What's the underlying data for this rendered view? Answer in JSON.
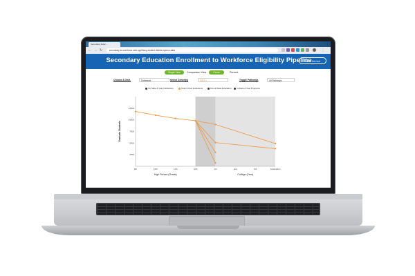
{
  "browser": {
    "tab_title": "Secondary Educ...",
    "url": "secondary-to-workforce.web.app/Navy-student-district-epeeco-data",
    "nav_icons": [
      "back-arrow",
      "forward-arrow",
      "reload"
    ]
  },
  "header": {
    "title": "Secondary Education Enrollment to Workforce Eligibility Pipeline",
    "about_label": "About this tool"
  },
  "view_toggle": {
    "single_label": "Single View",
    "comparison_label": "Comparison View",
    "count_label": "Count",
    "percent_label": "Percent"
  },
  "filters": {
    "district_label": "Choose A Distr.",
    "district_value": "Dolbeanie",
    "cohort_label": "Select Cohort(s)",
    "cohort_value": "2023 ×",
    "pathway_label": "Toggle Pathways",
    "pathway_value": "All Pathways"
  },
  "colors": {
    "brand_blue": "#1764b4",
    "toggle_green": "#70b62c",
    "series_orange": "#f0953a"
  },
  "chart_data": {
    "type": "line",
    "legend": [
      "On State 4-Year Institutions",
      "Total 4-Year Institutions",
      "Out-of-State Education",
      "In-State 2-Year Programs"
    ],
    "legend_colors": [
      "#333333",
      "#f0953a",
      "#333333",
      "#333333"
    ],
    "legend_placement": "top",
    "ylabel": "Graduate Students",
    "xlabel_groups": [
      "High School (Grade)",
      "College (Year)"
    ],
    "x_ticks": [
      "9th",
      "10th",
      "11th",
      "12th",
      "1st",
      "2nd",
      "3rd",
      "Graduation"
    ],
    "y_ticks": [
      0,
      2500,
      5000,
      7500,
      10000,
      12500
    ],
    "y_tick_labels": [
      "",
      "2500",
      "5000",
      "7500",
      "10000",
      "12500"
    ],
    "ylim": [
      0,
      15000
    ],
    "high_school_series": {
      "name": "",
      "x": [
        "9th",
        "10th",
        "11th",
        "12th"
      ],
      "values": [
        11800,
        11000,
        10300,
        9800
      ]
    },
    "branches": [
      {
        "x": [
          "12th",
          "1st",
          "Graduation"
        ],
        "values": [
          9800,
          9000,
          4900
        ]
      },
      {
        "x": [
          "12th",
          "1st",
          "Graduation"
        ],
        "values": [
          9800,
          5100,
          3800
        ]
      },
      {
        "x": [
          "12th",
          "1st"
        ],
        "values": [
          9800,
          3000
        ]
      },
      {
        "x": [
          "12th",
          "1st"
        ],
        "values": [
          9800,
          700
        ]
      }
    ],
    "grid": false
  }
}
